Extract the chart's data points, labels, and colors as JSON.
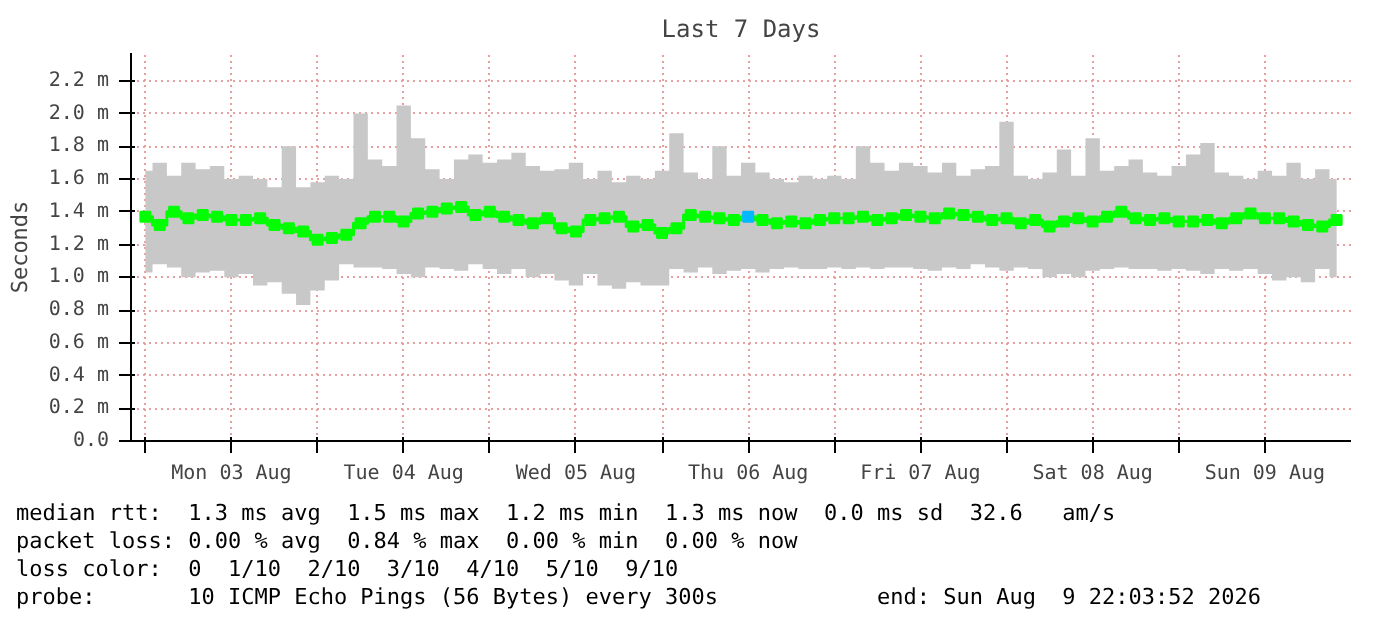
{
  "chart_data": {
    "type": "step",
    "title": "Last 7 Days",
    "ylabel": "Seconds",
    "marker": "square",
    "grid": true,
    "xlim": [
      "2026-08-02T22:00",
      "2026-08-10T00:00"
    ],
    "xticks": [
      {
        "value": "2026-08-03T00:00",
        "label": null
      },
      {
        "value": "2026-08-03T12:00",
        "label": "Mon 03 Aug"
      },
      {
        "value": "2026-08-04T00:00",
        "label": null
      },
      {
        "value": "2026-08-04T12:00",
        "label": "Tue 04 Aug"
      },
      {
        "value": "2026-08-05T00:00",
        "label": null
      },
      {
        "value": "2026-08-05T12:00",
        "label": "Wed 05 Aug"
      },
      {
        "value": "2026-08-06T00:00",
        "label": null
      },
      {
        "value": "2026-08-06T12:00",
        "label": "Thu 06 Aug"
      },
      {
        "value": "2026-08-07T00:00",
        "label": null
      },
      {
        "value": "2026-08-07T12:00",
        "label": "Fri 07 Aug"
      },
      {
        "value": "2026-08-08T00:00",
        "label": null
      },
      {
        "value": "2026-08-08T12:00",
        "label": "Sat 08 Aug"
      },
      {
        "value": "2026-08-09T00:00",
        "label": null
      },
      {
        "value": "2026-08-09T12:00",
        "label": "Sun 09 Aug"
      }
    ],
    "ylim": [
      0,
      2.37
    ],
    "yticks": [
      {
        "value": 0,
        "label": "0.0"
      },
      {
        "value": 0.2,
        "label": "0.2 m"
      },
      {
        "value": 0.4,
        "label": "0.4 m"
      },
      {
        "value": 0.6,
        "label": "0.6 m"
      },
      {
        "value": 0.8,
        "label": "0.8 m"
      },
      {
        "value": 1.0,
        "label": "1.0 m"
      },
      {
        "value": 1.2,
        "label": "1.2 m"
      },
      {
        "value": 1.4,
        "label": "1.4 m"
      },
      {
        "value": 1.6,
        "label": "1.6 m"
      },
      {
        "value": 1.8,
        "label": "1.8 m"
      },
      {
        "value": 2.0,
        "label": "2.0 m"
      },
      {
        "value": 2.2,
        "label": "2.2 m"
      }
    ],
    "x": [
      "2026-08-03T00:00",
      "2026-08-03T02:00",
      "2026-08-03T04:00",
      "2026-08-03T06:00",
      "2026-08-03T08:00",
      "2026-08-03T10:00",
      "2026-08-03T12:00",
      "2026-08-03T14:00",
      "2026-08-03T16:00",
      "2026-08-03T18:00",
      "2026-08-03T20:00",
      "2026-08-03T22:00",
      "2026-08-04T00:00",
      "2026-08-04T02:00",
      "2026-08-04T04:00",
      "2026-08-04T06:00",
      "2026-08-04T08:00",
      "2026-08-04T10:00",
      "2026-08-04T12:00",
      "2026-08-04T14:00",
      "2026-08-04T16:00",
      "2026-08-04T18:00",
      "2026-08-04T20:00",
      "2026-08-04T22:00",
      "2026-08-05T00:00",
      "2026-08-05T02:00",
      "2026-08-05T04:00",
      "2026-08-05T06:00",
      "2026-08-05T08:00",
      "2026-08-05T10:00",
      "2026-08-05T12:00",
      "2026-08-05T14:00",
      "2026-08-05T16:00",
      "2026-08-05T18:00",
      "2026-08-05T20:00",
      "2026-08-05T22:00",
      "2026-08-06T00:00",
      "2026-08-06T02:00",
      "2026-08-06T04:00",
      "2026-08-06T06:00",
      "2026-08-06T08:00",
      "2026-08-06T10:00",
      "2026-08-06T12:00",
      "2026-08-06T14:00",
      "2026-08-06T16:00",
      "2026-08-06T18:00",
      "2026-08-06T20:00",
      "2026-08-06T22:00",
      "2026-08-07T00:00",
      "2026-08-07T02:00",
      "2026-08-07T04:00",
      "2026-08-07T06:00",
      "2026-08-07T08:00",
      "2026-08-07T10:00",
      "2026-08-07T12:00",
      "2026-08-07T14:00",
      "2026-08-07T16:00",
      "2026-08-07T18:00",
      "2026-08-07T20:00",
      "2026-08-07T22:00",
      "2026-08-08T00:00",
      "2026-08-08T02:00",
      "2026-08-08T04:00",
      "2026-08-08T06:00",
      "2026-08-08T08:00",
      "2026-08-08T10:00",
      "2026-08-08T12:00",
      "2026-08-08T14:00",
      "2026-08-08T16:00",
      "2026-08-08T18:00",
      "2026-08-08T20:00",
      "2026-08-08T22:00",
      "2026-08-09T00:00",
      "2026-08-09T02:00",
      "2026-08-09T04:00",
      "2026-08-09T06:00",
      "2026-08-09T08:00",
      "2026-08-09T10:00",
      "2026-08-09T12:00",
      "2026-08-09T14:00",
      "2026-08-09T16:00",
      "2026-08-09T18:00",
      "2026-08-09T20:00",
      "2026-08-09T22:00"
    ],
    "series": [
      {
        "color": "#00ff00",
        "values": [
          1.37,
          1.32,
          1.4,
          1.36,
          1.38,
          1.37,
          1.35,
          1.35,
          1.36,
          1.32,
          1.3,
          1.28,
          1.23,
          1.24,
          1.26,
          1.33,
          1.37,
          1.37,
          1.34,
          1.39,
          1.4,
          1.42,
          1.43,
          1.38,
          1.4,
          1.37,
          1.35,
          1.33,
          1.36,
          1.3,
          1.28,
          1.35,
          1.36,
          1.37,
          1.31,
          1.32,
          1.27,
          1.3,
          1.38,
          1.37,
          1.36,
          1.35,
          1.37,
          1.35,
          1.33,
          1.34,
          1.33,
          1.35,
          1.36,
          1.36,
          1.37,
          1.35,
          1.36,
          1.38,
          1.37,
          1.36,
          1.39,
          1.38,
          1.37,
          1.35,
          1.36,
          1.33,
          1.35,
          1.31,
          1.34,
          1.36,
          1.34,
          1.37,
          1.4,
          1.36,
          1.35,
          1.36,
          1.34,
          1.34,
          1.35,
          1.33,
          1.36,
          1.39,
          1.36,
          1.36,
          1.34,
          1.32,
          1.31,
          1.35
        ],
        "colors": [
          "#00ff00",
          "#00ff00",
          "#00ff00",
          "#00ff00",
          "#00ff00",
          "#00ff00",
          "#00ff00",
          "#00ff00",
          "#00ff00",
          "#00ff00",
          "#00ff00",
          "#00ff00",
          "#00ff00",
          "#00ff00",
          "#00ff00",
          "#00ff00",
          "#00ff00",
          "#00ff00",
          "#00ff00",
          "#00ff00",
          "#00ff00",
          "#00ff00",
          "#00ff00",
          "#00ff00",
          "#00ff00",
          "#00ff00",
          "#00ff00",
          "#00ff00",
          "#00ff00",
          "#00ff00",
          "#00ff00",
          "#00ff00",
          "#00ff00",
          "#00ff00",
          "#00ff00",
          "#00ff00",
          "#00ff00",
          "#00ff00",
          "#00ff00",
          "#00ff00",
          "#00ff00",
          "#00ff00",
          "#00b8ff",
          "#00ff00",
          "#00ff00",
          "#00ff00",
          "#00ff00",
          "#00ff00",
          "#00ff00",
          "#00ff00",
          "#00ff00",
          "#00ff00",
          "#00ff00",
          "#00ff00",
          "#00ff00",
          "#00ff00",
          "#00ff00",
          "#00ff00",
          "#00ff00",
          "#00ff00",
          "#00ff00",
          "#00ff00",
          "#00ff00",
          "#00ff00",
          "#00ff00",
          "#00ff00",
          "#00ff00",
          "#00ff00",
          "#00ff00",
          "#00ff00",
          "#00ff00",
          "#00ff00",
          "#00ff00",
          "#00ff00",
          "#00ff00",
          "#00ff00",
          "#00ff00",
          "#00ff00",
          "#00ff00",
          "#00ff00",
          "#00ff00",
          "#00ff00",
          "#00ff00",
          "#00ff00"
        ],
        "lower": [
          1.03,
          1.08,
          1.06,
          1.0,
          1.03,
          1.04,
          1.0,
          1.02,
          0.95,
          0.97,
          0.9,
          0.83,
          0.92,
          0.98,
          1.08,
          1.06,
          1.06,
          1.05,
          1.02,
          1.0,
          1.06,
          1.05,
          1.04,
          1.08,
          1.05,
          1.02,
          1.05,
          1.0,
          1.02,
          0.98,
          0.95,
          1.02,
          0.95,
          0.93,
          0.97,
          0.95,
          0.95,
          1.05,
          1.03,
          1.06,
          1.02,
          1.04,
          1.05,
          1.03,
          1.05,
          1.06,
          1.05,
          1.05,
          1.06,
          1.05,
          1.06,
          1.05,
          1.06,
          1.06,
          1.05,
          1.04,
          1.06,
          1.05,
          1.08,
          1.06,
          1.04,
          1.06,
          1.05,
          1.0,
          1.02,
          1.0,
          1.04,
          1.05,
          1.06,
          1.05,
          1.05,
          1.04,
          1.05,
          1.04,
          1.02,
          1.05,
          1.04,
          1.05,
          1.02,
          0.98,
          1.0,
          0.97,
          1.05,
          1.0
        ],
        "upper": [
          1.65,
          1.7,
          1.62,
          1.7,
          1.66,
          1.68,
          1.6,
          1.62,
          1.6,
          1.55,
          1.8,
          1.55,
          1.58,
          1.62,
          1.6,
          2.0,
          1.72,
          1.68,
          2.05,
          1.85,
          1.66,
          1.6,
          1.72,
          1.75,
          1.7,
          1.72,
          1.76,
          1.68,
          1.65,
          1.66,
          1.7,
          1.6,
          1.65,
          1.58,
          1.62,
          1.6,
          1.65,
          1.88,
          1.64,
          1.6,
          1.8,
          1.62,
          1.7,
          1.64,
          1.6,
          1.58,
          1.62,
          1.6,
          1.62,
          1.6,
          1.8,
          1.7,
          1.65,
          1.7,
          1.68,
          1.64,
          1.7,
          1.62,
          1.66,
          1.68,
          1.95,
          1.62,
          1.6,
          1.64,
          1.78,
          1.62,
          1.85,
          1.65,
          1.68,
          1.72,
          1.64,
          1.62,
          1.68,
          1.75,
          1.82,
          1.64,
          1.62,
          1.6,
          1.65,
          1.62,
          1.7,
          1.6,
          1.66,
          1.6
        ]
      }
    ],
    "annotations": [
      "median rtt:  1.3 ms avg  1.5 ms max  1.2 ms min  1.3 ms now  0.0 ms sd  32.6   am/s",
      "packet loss: 0.00 % avg  0.84 % max  0.00 % min  0.00 % now",
      "loss color:  0  1/10  2/10  3/10  4/10  5/10  9/10",
      "probe:       10 ICMP Echo Pings (56 Bytes) every 300s            end: Sun Aug  9 22:03:52 2026"
    ]
  }
}
